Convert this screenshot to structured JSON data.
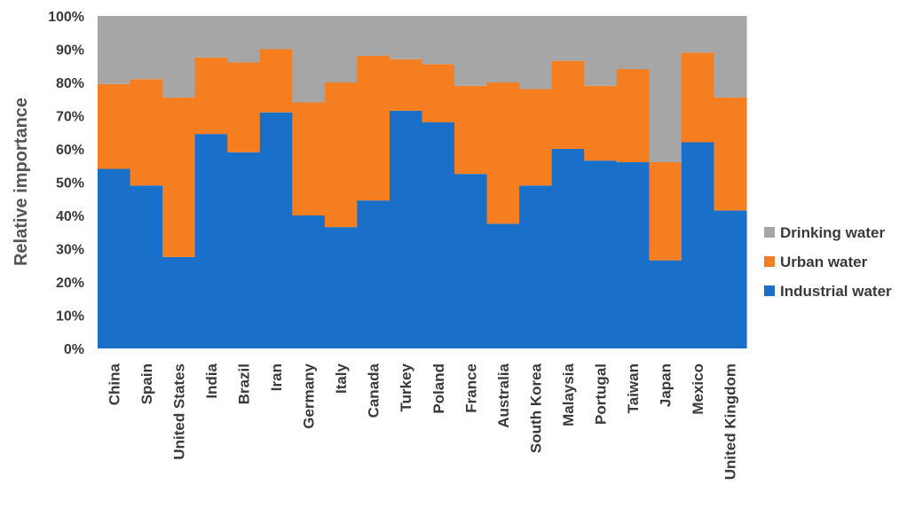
{
  "chart_data": {
    "type": "bar",
    "stacked": true,
    "ylabel": "Relative importance",
    "yticks": [
      "0%",
      "10%",
      "20%",
      "30%",
      "40%",
      "50%",
      "60%",
      "70%",
      "80%",
      "90%",
      "100%"
    ],
    "ylim": [
      0,
      100
    ],
    "categories": [
      "China",
      "Spain",
      "United States",
      "India",
      "Brazil",
      "Iran",
      "Germany",
      "Italy",
      "Canada",
      "Turkey",
      "Poland",
      "France",
      "Australia",
      "South Korea",
      "Malaysia",
      "Portugal",
      "Taiwan",
      "Japan",
      "Mexico",
      "United Kingdom"
    ],
    "series": [
      {
        "name": "Industrial water",
        "color": "#1a6fc9",
        "values": [
          54,
          49,
          27.5,
          64.5,
          59,
          71,
          40,
          36.5,
          44.5,
          71.5,
          68,
          52.5,
          37.5,
          49,
          60,
          56.5,
          56,
          26.5,
          62,
          41.5
        ]
      },
      {
        "name": "Urban water",
        "color": "#f47e20",
        "values": [
          25.5,
          32,
          48,
          23,
          27,
          19,
          34,
          43.5,
          43.5,
          15.5,
          17.5,
          26.5,
          42.5,
          29,
          26.5,
          22.5,
          28,
          29.5,
          27,
          34
        ]
      },
      {
        "name": "Drinking water",
        "color": "#a6a6a6",
        "values": [
          20.5,
          19,
          24.5,
          12.5,
          14,
          10,
          26,
          20,
          12,
          13,
          14.5,
          21,
          20,
          22,
          13.5,
          21,
          16,
          44,
          11,
          24.5
        ]
      }
    ],
    "legend": [
      "Drinking water",
      "Urban water",
      "Industrial water"
    ],
    "legend_position": "right",
    "grid": false
  }
}
